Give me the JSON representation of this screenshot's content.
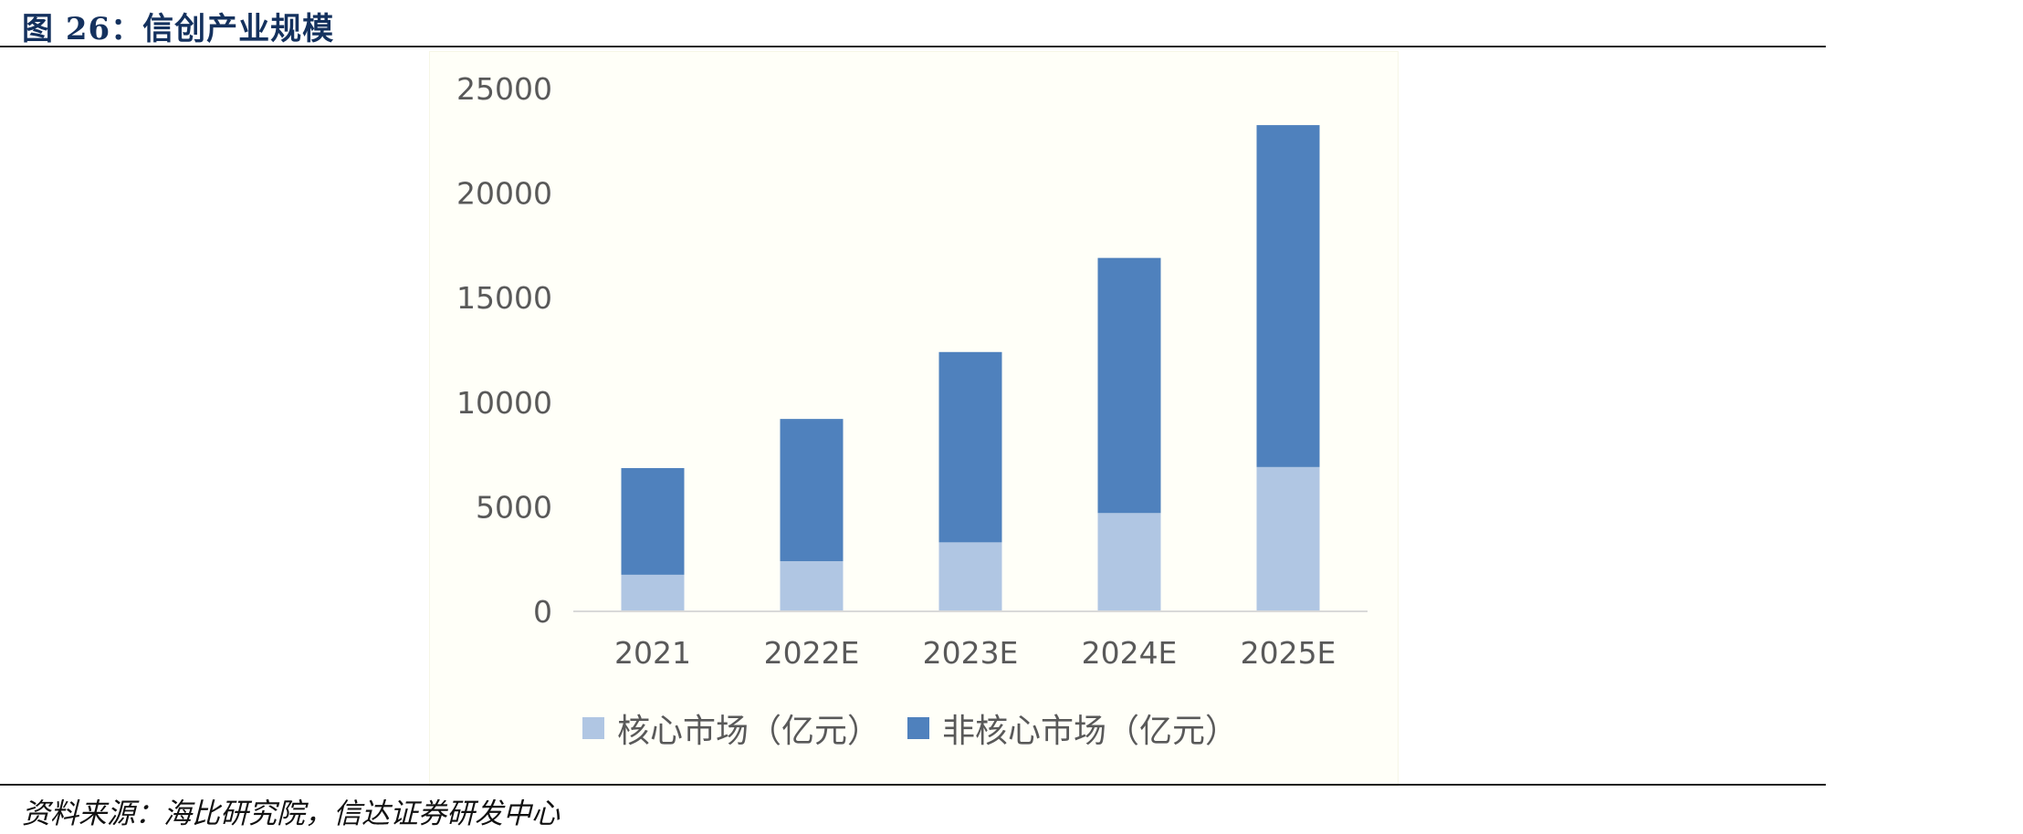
{
  "figure": {
    "title": "图 26：信创产业规模",
    "source": "资料来源：海比研究院，信达证券研发中心"
  },
  "colors": {
    "core": "#b0c6e3",
    "noncore": "#4f81bd",
    "axis_text": "#595959",
    "title": "#14315e"
  },
  "chart_data": {
    "type": "bar",
    "stacked": true,
    "categories": [
      "2021",
      "2022E",
      "2023E",
      "2024E",
      "2025E"
    ],
    "series": [
      {
        "name": "核心市场（亿元）",
        "values": [
          1750,
          2400,
          3300,
          4700,
          6900
        ]
      },
      {
        "name": "非核心市场（亿元）",
        "values": [
          5100,
          6800,
          9100,
          12200,
          16350
        ]
      }
    ],
    "yticks": [
      "0",
      "5000",
      "10000",
      "15000",
      "20000",
      "25000"
    ],
    "ylim": [
      0,
      25000
    ],
    "grid": false,
    "legend_position": "bottom",
    "title": "",
    "xlabel": "",
    "ylabel": ""
  }
}
